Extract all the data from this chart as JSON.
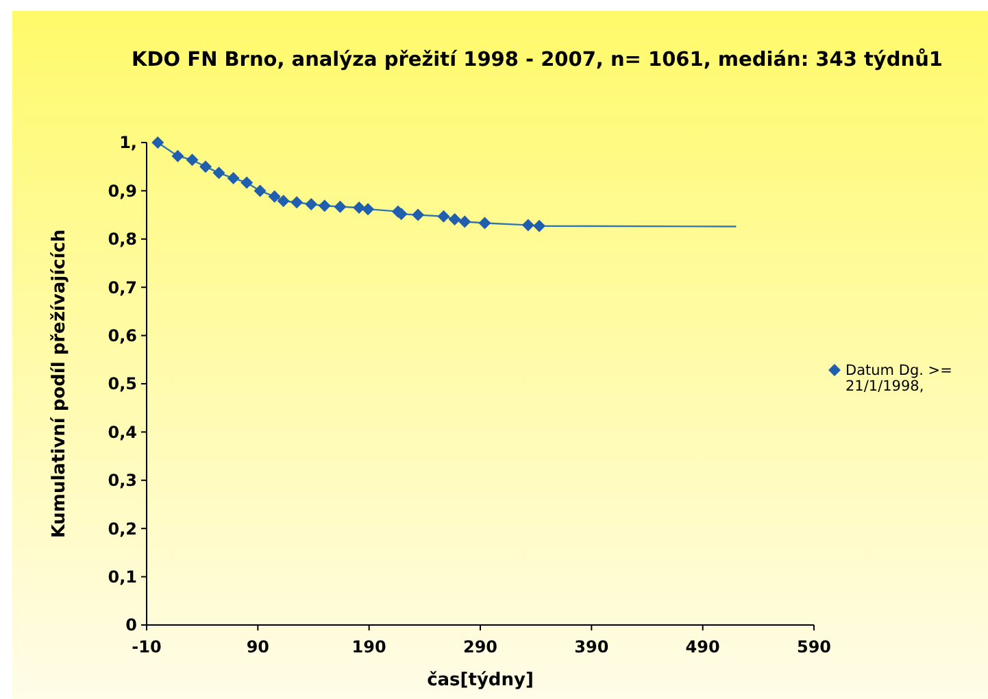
{
  "chart_data": {
    "type": "line",
    "title": "KDO FN Brno, analýza přežití 1998 - 2007, n= 1061, medián: 343 týdnů1",
    "xlabel": "čas[týdny]",
    "ylabel": "Kumulativní podíl přežívajících",
    "series": [
      {
        "color": "#2e75b6",
        "marker": "none",
        "x": [
          0,
          18,
          31,
          43,
          55,
          68,
          80,
          92,
          105,
          113,
          125,
          138,
          150,
          164,
          181,
          189,
          216,
          219,
          234,
          257,
          267,
          276,
          294,
          333,
          343,
          520
        ],
        "values": [
          1,
          0.972,
          0.964,
          0.95,
          0.937,
          0.926,
          0.917,
          0.9,
          0.888,
          0.879,
          0.876,
          0.872,
          0.869,
          0.867,
          0.865,
          0.862,
          0.857,
          0.852,
          0.85,
          0.847,
          0.841,
          0.836,
          0.833,
          0.829,
          0.827,
          0.826
        ]
      },
      {
        "type": "scatter",
        "name": "Datum Dg. >= 21/1/1998,",
        "color": "#1f5fad",
        "marker": "diamond",
        "x": [
          0,
          18,
          31,
          43,
          55,
          68,
          80,
          92,
          105,
          113,
          125,
          138,
          150,
          164,
          181,
          189,
          216,
          219,
          234,
          257,
          267,
          276,
          294,
          333,
          343
        ],
        "values": [
          1,
          0.972,
          0.964,
          0.95,
          0.937,
          0.926,
          0.917,
          0.9,
          0.888,
          0.879,
          0.876,
          0.872,
          0.869,
          0.867,
          0.865,
          0.862,
          0.857,
          0.852,
          0.85,
          0.847,
          0.841,
          0.836,
          0.833,
          0.829,
          0.827
        ]
      }
    ],
    "xlim": [
      -10,
      590
    ],
    "xticks": [
      -10,
      90,
      190,
      290,
      390,
      490,
      590
    ],
    "ylim": [
      0,
      1
    ],
    "yticks": [
      {
        "value": 0,
        "label": "0"
      },
      {
        "value": 0.1,
        "label": "0,1"
      },
      {
        "value": 0.2,
        "label": "0,2"
      },
      {
        "value": 0.3,
        "label": "0,3"
      },
      {
        "value": 0.4,
        "label": "0,4"
      },
      {
        "value": 0.5,
        "label": "0,5"
      },
      {
        "value": 0.6,
        "label": "0,6"
      },
      {
        "value": 0.7,
        "label": "0,7"
      },
      {
        "value": 0.8,
        "label": "0,8"
      },
      {
        "value": 0.9,
        "label": "0,9"
      },
      {
        "value": 1,
        "label": "1,"
      }
    ],
    "grid": false,
    "legend": "right"
  }
}
